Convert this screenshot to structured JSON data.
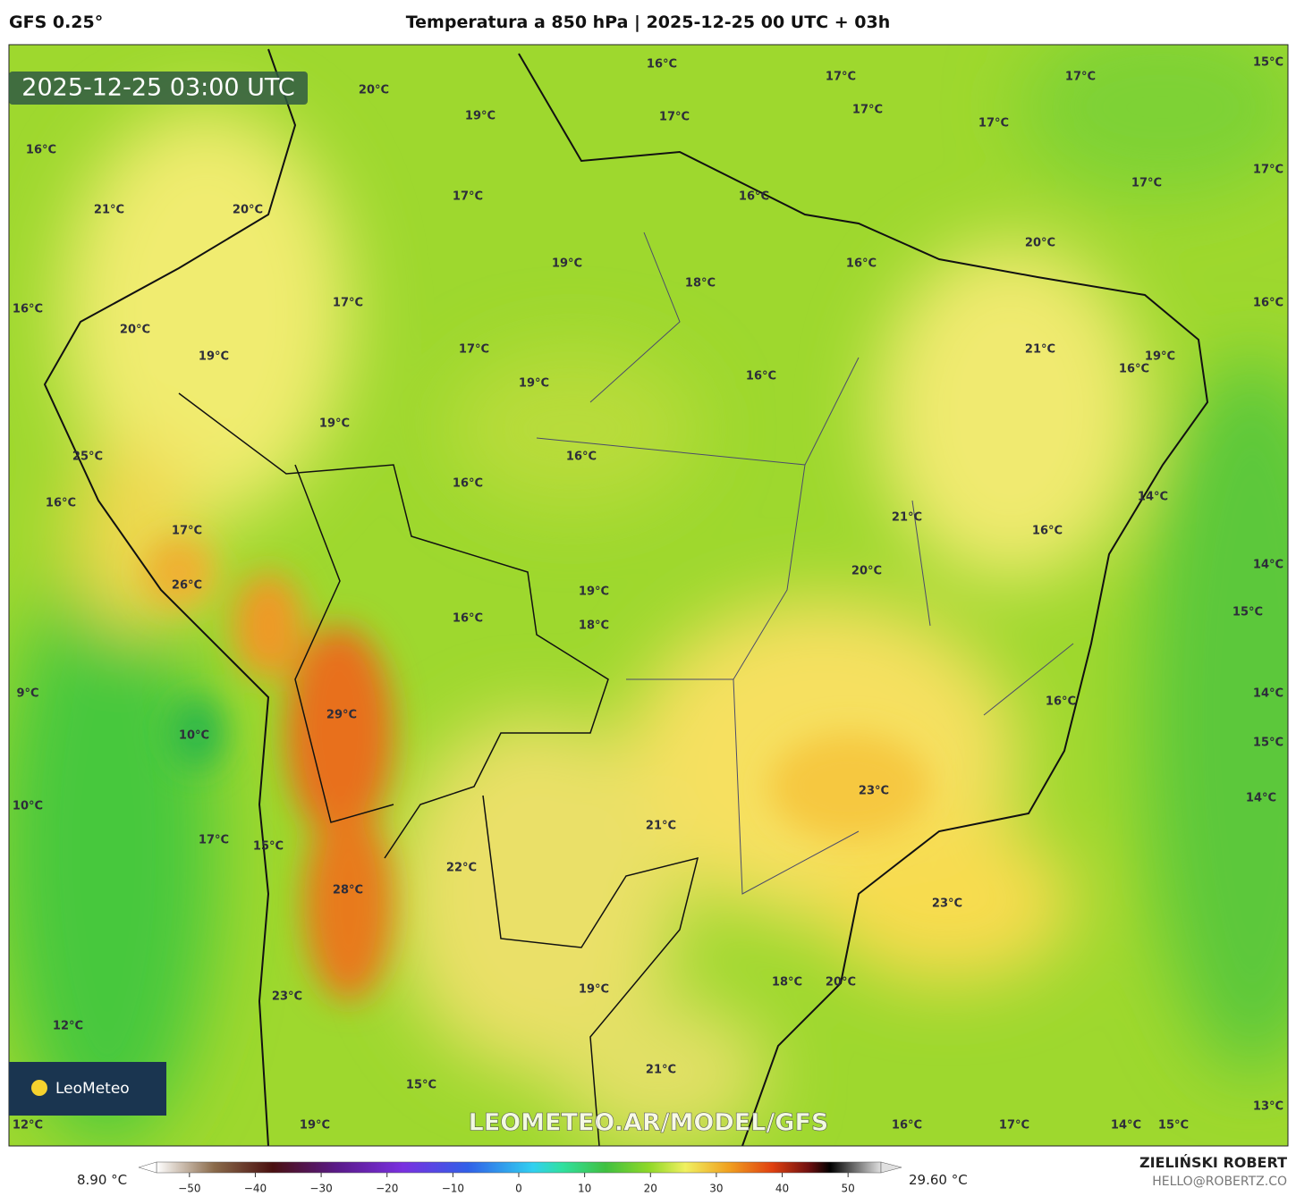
{
  "header": {
    "model": "GFS 0.25°",
    "title": "Temperatura a 850 hPa | 2025-12-25 00 UTC + 03h"
  },
  "timestamp": "2025-12-25 03:00 UTC",
  "watermark": "LEOMETEO.AR/MODEL/GFS",
  "logo": "LeoMeteo",
  "map_labels": [
    "16°C",
    "17°C",
    "17°C",
    "15°C",
    "20°C",
    "19°C",
    "17°C",
    "17°C",
    "17°C",
    "16°C",
    "17°C",
    "17°C",
    "21°C",
    "20°C",
    "17°C",
    "16°C",
    "20°C",
    "16°C",
    "19°C",
    "18°C",
    "16°C",
    "17°C",
    "16°C",
    "20°C",
    "21°C",
    "19°C",
    "17°C",
    "19°C",
    "16°C",
    "16°C",
    "19°C",
    "19°C",
    "25°C",
    "16°C",
    "16°C",
    "14°C",
    "16°C",
    "21°C",
    "17°C",
    "16°C",
    "14°C",
    "20°C",
    "26°C",
    "19°C",
    "15°C",
    "16°C",
    "18°C",
    "9°C",
    "14°C",
    "16°C",
    "29°C",
    "10°C",
    "15°C",
    "23°C",
    "14°C",
    "10°C",
    "21°C",
    "17°C",
    "15°C",
    "22°C",
    "28°C",
    "23°C",
    "19°C",
    "18°C",
    "20°C",
    "23°C",
    "12°C",
    "21°C",
    "15°C",
    "12°C",
    "19°C",
    "16°C",
    "17°C",
    "14°C",
    "15°C",
    "13°C"
  ],
  "colorbar": {
    "min_label": "8.90 °C",
    "max_label": "29.60 °C",
    "clim": [
      -55,
      55
    ],
    "ticks": [
      {
        "value": -50,
        "label": "−50"
      },
      {
        "value": -40,
        "label": "−40"
      },
      {
        "value": -30,
        "label": "−30"
      },
      {
        "value": -20,
        "label": "−20"
      },
      {
        "value": -10,
        "label": "−10"
      },
      0,
      10,
      20,
      30,
      40,
      50
    ]
  },
  "credits": {
    "author": "ZIELIŃSKI ROBERT",
    "email": "HELLO@ROBERTZ.CO"
  }
}
